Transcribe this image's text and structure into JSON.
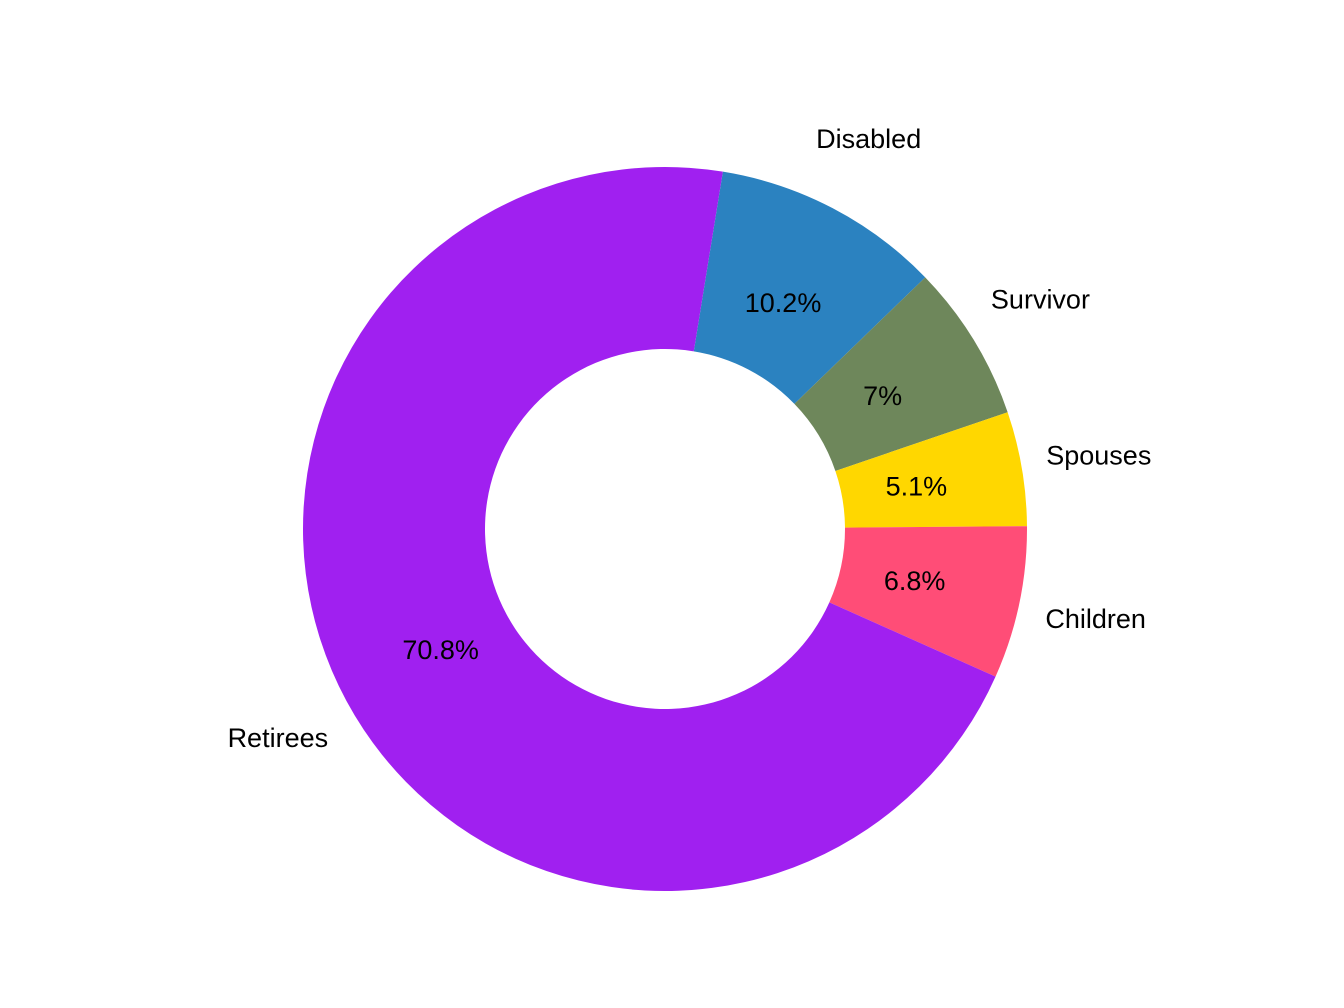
{
  "chart_data": {
    "type": "pie",
    "variant": "donut",
    "title": "",
    "slices": [
      {
        "label": "Disabled",
        "value": 10.2,
        "value_label": "10.2%",
        "color": "#2b82c0"
      },
      {
        "label": "Survivor",
        "value": 7.0,
        "value_label": "7%",
        "color": "#6e875b"
      },
      {
        "label": "Spouses",
        "value": 5.1,
        "value_label": "5.1%",
        "color": "#ffd700"
      },
      {
        "label": "Children",
        "value": 6.8,
        "value_label": "6.8%",
        "color": "#ff4d77"
      },
      {
        "label": "Retirees",
        "value": 70.8,
        "value_label": "70.8%",
        "color": "#a020f0"
      }
    ],
    "legend": "none",
    "start_direction": "clockwise-from-top"
  }
}
